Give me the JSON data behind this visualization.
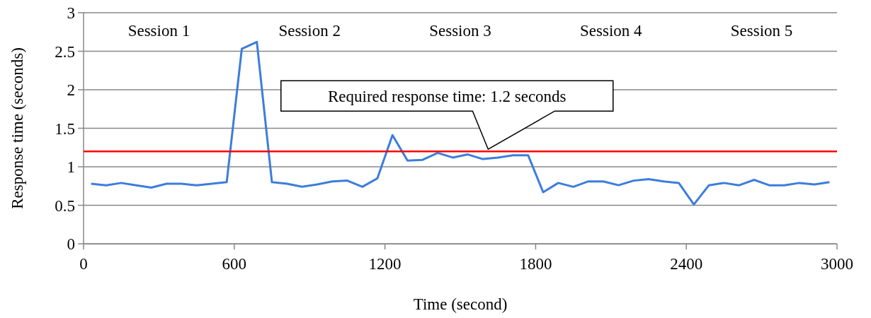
{
  "chart_data": {
    "type": "line",
    "xlabel": "Time (second)",
    "ylabel": "Response time (seconds)",
    "x": [
      30,
      90,
      150,
      210,
      270,
      330,
      390,
      450,
      510,
      570,
      630,
      690,
      750,
      810,
      870,
      930,
      990,
      1050,
      1110,
      1170,
      1230,
      1290,
      1350,
      1410,
      1470,
      1530,
      1590,
      1650,
      1710,
      1770,
      1830,
      1890,
      1950,
      2010,
      2070,
      2130,
      2190,
      2250,
      2310,
      2370,
      2430,
      2490,
      2550,
      2610,
      2670,
      2730,
      2790,
      2850,
      2910,
      2970
    ],
    "series": [
      {
        "color": "#3c7ddd",
        "values": [
          0.78,
          0.76,
          0.79,
          0.76,
          0.73,
          0.78,
          0.78,
          0.76,
          0.78,
          0.8,
          2.53,
          2.62,
          0.8,
          0.78,
          0.74,
          0.77,
          0.81,
          0.82,
          0.74,
          0.85,
          1.41,
          1.08,
          1.09,
          1.18,
          1.12,
          1.16,
          1.1,
          1.12,
          1.15,
          1.15,
          0.67,
          0.79,
          0.74,
          0.81,
          0.81,
          0.76,
          0.82,
          0.84,
          0.81,
          0.79,
          0.51,
          0.76,
          0.79,
          0.76,
          0.83,
          0.76,
          0.76,
          0.79,
          0.77,
          0.8
        ]
      }
    ],
    "xlim": [
      0,
      3000
    ],
    "xticks": [
      0,
      600,
      1200,
      1800,
      2400,
      3000
    ],
    "ylim": [
      0,
      3
    ],
    "yticks": [
      0,
      0.5,
      1,
      1.5,
      2,
      2.5,
      3
    ],
    "grid": "y",
    "marker": "none",
    "line_style": "solid",
    "ref_lines": [
      {
        "axis": "y",
        "value": 1.2,
        "label": "Required response time: 1.2 seconds",
        "color": "#ff0000"
      }
    ],
    "annotations": [
      "Session 1",
      "Session 2",
      "Session 3",
      "Session 4",
      "Session 5"
    ]
  }
}
